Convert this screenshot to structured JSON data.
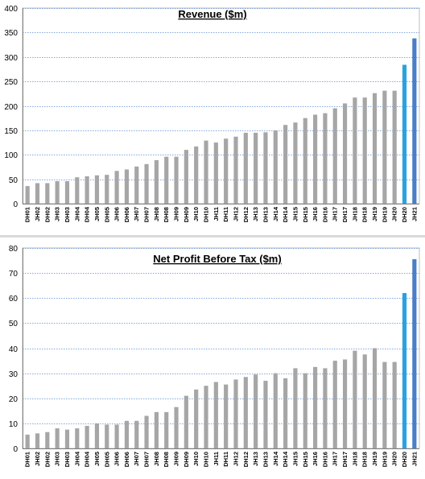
{
  "chart_data": [
    {
      "type": "bar",
      "title": "Revenue ($m)",
      "xlabel": "",
      "ylabel": "",
      "ylim": [
        0,
        400
      ],
      "yticks": [
        0,
        50,
        100,
        150,
        200,
        250,
        300,
        350,
        400
      ],
      "grid": true,
      "categories": [
        "DH01",
        "JH02",
        "DH02",
        "JH03",
        "DH03",
        "JH04",
        "DH04",
        "JH05",
        "DH05",
        "JH06",
        "DH06",
        "JH07",
        "DH07",
        "JH08",
        "DH08",
        "JH09",
        "DH09",
        "JH10",
        "DH10",
        "JH11",
        "DH11",
        "JH12",
        "DH12",
        "JH13",
        "DH13",
        "JH14",
        "DH14",
        "JH15",
        "DH15",
        "JH16",
        "DH16",
        "JH17",
        "DH17",
        "JH18",
        "DH18",
        "JH19",
        "DH19",
        "JH20",
        "DH20",
        "JH21"
      ],
      "values": [
        36,
        42,
        42,
        46,
        46,
        54,
        56,
        58,
        59,
        67,
        70,
        76,
        81,
        89,
        96,
        96,
        110,
        117,
        129,
        125,
        133,
        137,
        145,
        145,
        146,
        150,
        161,
        166,
        175,
        182,
        185,
        195,
        205,
        217,
        217,
        226,
        231,
        231,
        284,
        338
      ],
      "colors": {
        "default": "#a6a6a6",
        "DH20": "#29a3e0",
        "JH21": "#4a7ec6"
      }
    },
    {
      "type": "bar",
      "title": "Net Profit Before Tax ($m)",
      "xlabel": "",
      "ylabel": "",
      "ylim": [
        0,
        80
      ],
      "yticks": [
        0,
        10,
        20,
        30,
        40,
        50,
        60,
        70,
        80
      ],
      "grid": true,
      "categories": [
        "DH01",
        "JH02",
        "DH02",
        "JH03",
        "DH03",
        "JH04",
        "DH04",
        "JH05",
        "DH05",
        "JH06",
        "DH06",
        "JH07",
        "DH07",
        "JH08",
        "DH08",
        "JH09",
        "DH09",
        "JH10",
        "DH10",
        "JH11",
        "DH11",
        "JH12",
        "DH12",
        "JH13",
        "DH13",
        "JH14",
        "DH14",
        "JH15",
        "DH15",
        "JH16",
        "DH16",
        "JH17",
        "DH17",
        "JH18",
        "DH18",
        "JH19",
        "DH19",
        "JH20",
        "DH20",
        "JH21"
      ],
      "values": [
        5.5,
        6,
        6.5,
        8,
        7.5,
        8,
        9,
        10,
        9.5,
        9.5,
        11,
        11,
        13,
        14.5,
        14.5,
        16.5,
        21,
        23.5,
        25,
        26.5,
        25.5,
        27.5,
        28.5,
        29.5,
        27,
        30,
        28,
        32,
        30,
        32.5,
        32,
        35,
        35.5,
        39,
        37.5,
        40,
        34.5,
        34.5,
        62,
        75.5
      ],
      "colors": {
        "default": "#a6a6a6",
        "DH20": "#29a3e0",
        "JH21": "#4a7ec6"
      }
    }
  ]
}
